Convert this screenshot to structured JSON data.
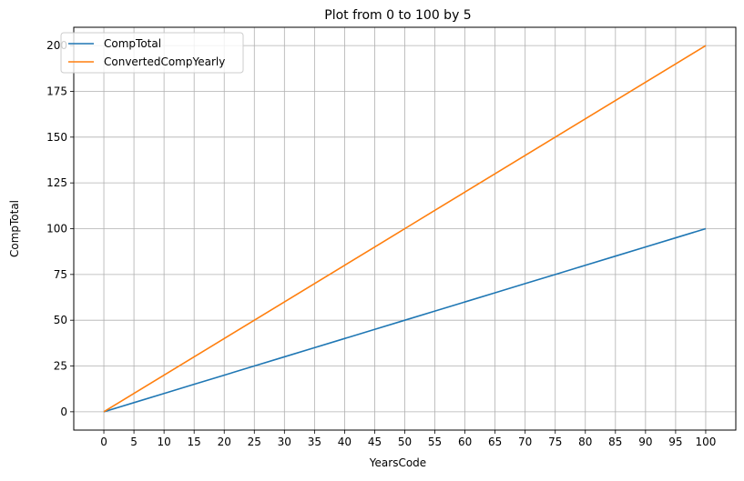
{
  "chart_data": {
    "type": "line",
    "title": "Plot from 0 to 100 by 5",
    "xlabel": "YearsCode",
    "ylabel": "CompTotal",
    "x": [
      0,
      5,
      10,
      15,
      20,
      25,
      30,
      35,
      40,
      45,
      50,
      55,
      60,
      65,
      70,
      75,
      80,
      85,
      90,
      95,
      100
    ],
    "series": [
      {
        "name": "CompTotal",
        "color": "#1f77b4",
        "values": [
          0,
          5,
          10,
          15,
          20,
          25,
          30,
          35,
          40,
          45,
          50,
          55,
          60,
          65,
          70,
          75,
          80,
          85,
          90,
          95,
          100
        ]
      },
      {
        "name": "ConvertedCompYearly",
        "color": "#ff7f0e",
        "values": [
          0,
          10,
          20,
          30,
          40,
          50,
          60,
          70,
          80,
          90,
          100,
          110,
          120,
          130,
          140,
          150,
          160,
          170,
          180,
          190,
          200
        ]
      }
    ],
    "xticks": [
      0,
      5,
      10,
      15,
      20,
      25,
      30,
      35,
      40,
      45,
      50,
      55,
      60,
      65,
      70,
      75,
      80,
      85,
      90,
      95,
      100
    ],
    "yticks": [
      0,
      25,
      50,
      75,
      100,
      125,
      150,
      175,
      200
    ],
    "xlim": [
      -5,
      105
    ],
    "ylim": [
      -10,
      210
    ],
    "grid": true,
    "legend_position": "upper-left"
  }
}
